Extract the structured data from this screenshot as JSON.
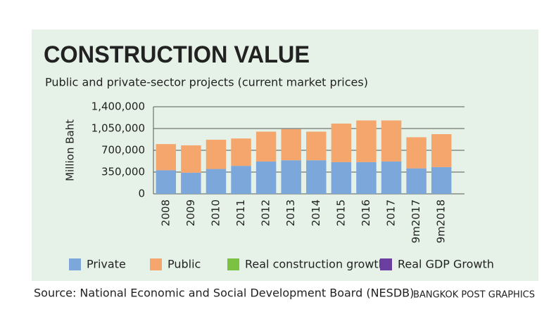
{
  "chart_data": {
    "type": "stacked_bar",
    "title": "CONSTRUCTION VALUE",
    "subtitle": "Public and private-sector projects (current market prices)",
    "y_label": "Million Baht",
    "categories": [
      "2008",
      "2009",
      "2010",
      "2011",
      "2012",
      "2013",
      "2014",
      "2015",
      "2016",
      "2017",
      "9m2017",
      "9m2018"
    ],
    "series": [
      {
        "name": "Private",
        "color": "#7ba7db",
        "values": [
          380000,
          340000,
          400000,
          450000,
          520000,
          540000,
          540000,
          510000,
          510000,
          520000,
          410000,
          430000
        ]
      },
      {
        "name": "Public",
        "color": "#f5a66c",
        "values": [
          420000,
          440000,
          470000,
          440000,
          480000,
          500000,
          460000,
          620000,
          670000,
          660000,
          500000,
          530000
        ]
      },
      {
        "name": "Real construction growth",
        "color": "#7cc242",
        "values": [
          null,
          null,
          null,
          null,
          null,
          null,
          null,
          null,
          null,
          null,
          null,
          null
        ]
      },
      {
        "name": "Real GDP Growth",
        "color": "#6b3fa0",
        "values": [
          null,
          null,
          null,
          null,
          null,
          null,
          null,
          null,
          null,
          null,
          null,
          null
        ]
      }
    ],
    "ylim": [
      0,
      1400000
    ],
    "yticks": [
      0,
      {
        "value": 350000,
        "label": "350,000"
      },
      {
        "value": 700000,
        "label": "700,000"
      },
      {
        "value": 1050000,
        "label": "1,050,000"
      },
      {
        "value": 1400000,
        "label": "1,400,000"
      }
    ],
    "grid": true,
    "legend": "bottom",
    "source": "Source: National Economic and Social Development Board (NESDB)",
    "credit": "BANGKOK POST GRAPHICS"
  }
}
